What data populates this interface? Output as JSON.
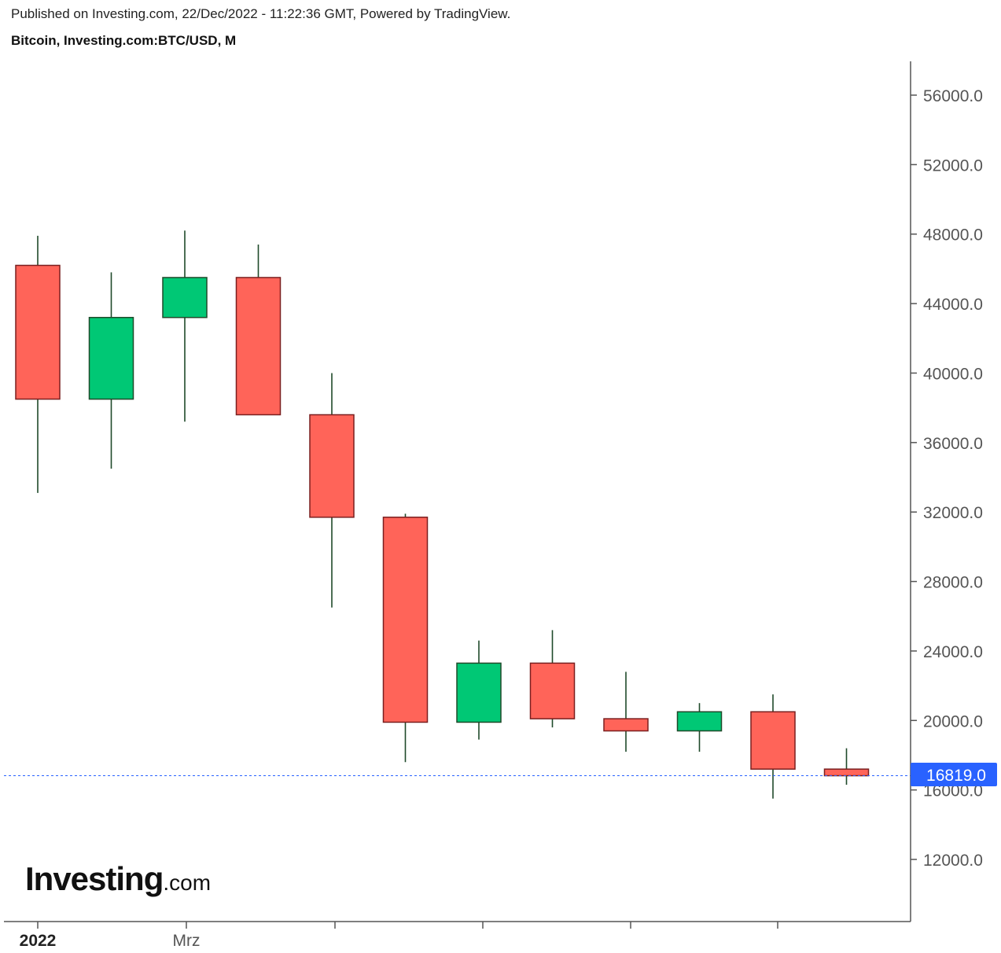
{
  "header": {
    "published": "Published on Investing.com, 22/Dec/2022 - 11:22:36 GMT, Powered by TradingView.",
    "symbol": "Bitcoin, Investing.com:BTC/USD, M"
  },
  "logo": {
    "brand": "Investing",
    "suffix": ".com"
  },
  "colors": {
    "up": "#00c875",
    "down": "#ff6459",
    "border": "#7a1f1f",
    "wick": "#1f4a2a",
    "price_line": "#2962ff",
    "axis": "#555555"
  },
  "chart_data": {
    "type": "candlestick",
    "title": "Bitcoin, Investing.com:BTC/USD, M",
    "interval": "monthly",
    "x_labels": [
      "2022",
      "Mrz"
    ],
    "ylim": [
      8000,
      58000
    ],
    "y_ticks": [
      "56000.0",
      "52000.0",
      "48000.0",
      "44000.0",
      "40000.0",
      "36000.0",
      "32000.0",
      "28000.0",
      "24000.0",
      "20000.0",
      "16000.0",
      "12000.0"
    ],
    "y_tick_values": [
      56000,
      52000,
      48000,
      44000,
      40000,
      36000,
      32000,
      28000,
      24000,
      20000,
      16000,
      12000
    ],
    "last_price": 16819.0,
    "last_price_label": "16819.0",
    "candles": [
      {
        "month": "2022-01",
        "open": 46200,
        "high": 47900,
        "low": 33100,
        "close": 38500
      },
      {
        "month": "2022-02",
        "open": 38500,
        "high": 45800,
        "low": 34500,
        "close": 43200
      },
      {
        "month": "2022-03",
        "open": 43200,
        "high": 48200,
        "low": 37200,
        "close": 45500
      },
      {
        "month": "2022-04",
        "open": 45500,
        "high": 47400,
        "low": 37600,
        "close": 37600
      },
      {
        "month": "2022-05",
        "open": 37600,
        "high": 40000,
        "low": 26500,
        "close": 31700
      },
      {
        "month": "2022-06",
        "open": 31700,
        "high": 31900,
        "low": 17600,
        "close": 19900
      },
      {
        "month": "2022-07",
        "open": 19900,
        "high": 24600,
        "low": 18900,
        "close": 23300
      },
      {
        "month": "2022-08",
        "open": 23300,
        "high": 25200,
        "low": 19600,
        "close": 20100
      },
      {
        "month": "2022-09",
        "open": 20100,
        "high": 22800,
        "low": 18200,
        "close": 19400
      },
      {
        "month": "2022-10",
        "open": 19400,
        "high": 21000,
        "low": 18200,
        "close": 20500
      },
      {
        "month": "2022-11",
        "open": 20500,
        "high": 21500,
        "low": 15500,
        "close": 17200
      },
      {
        "month": "2022-12",
        "open": 17200,
        "high": 18400,
        "low": 16300,
        "close": 16819
      }
    ]
  }
}
